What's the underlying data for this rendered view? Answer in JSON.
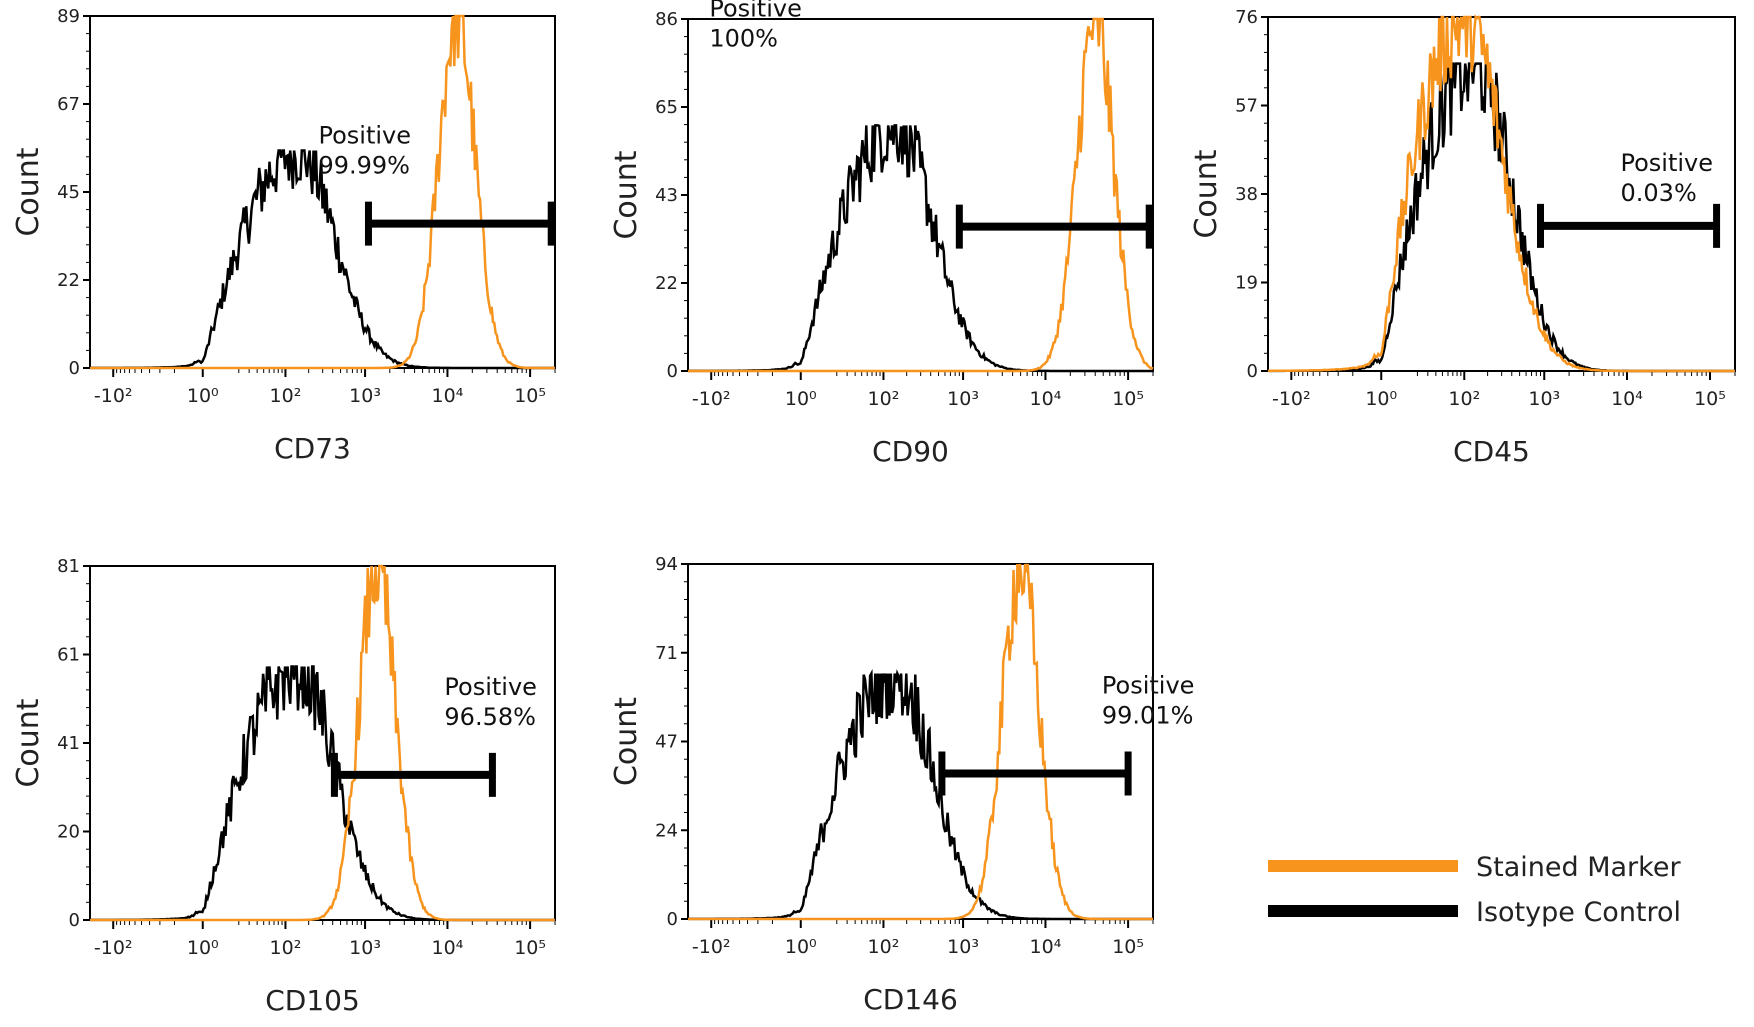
{
  "chart_data": [
    {
      "type": "area",
      "title": "CD73",
      "ylabel": "Count",
      "ylim": [
        0,
        89
      ],
      "yticks": [
        "0",
        "22",
        "45",
        "67",
        "89"
      ],
      "xscale": "log (biexponential)",
      "xticks": [
        "-10²",
        "10⁰",
        "10²",
        "10³",
        "10⁴",
        "10⁵"
      ],
      "gate": {
        "label": "Positive",
        "value": "99.99%",
        "from": 1100,
        "to": 180000
      },
      "series": [
        {
          "name": "Stained Marker",
          "color": "#F7941D",
          "peak_x": 13000,
          "peak_count": 89
        },
        {
          "name": "Isotype Control",
          "color": "#000000",
          "peak_x": 150,
          "peak_count": 55
        }
      ]
    },
    {
      "type": "area",
      "title": "CD90",
      "ylabel": "Count",
      "ylim": [
        0,
        86
      ],
      "yticks": [
        "0",
        "22",
        "43",
        "65",
        "86"
      ],
      "xscale": "log (biexponential)",
      "xticks": [
        "-10²",
        "10⁰",
        "10²",
        "10³",
        "10⁴",
        "10⁵"
      ],
      "gate": {
        "label": "Positive",
        "value": "100%",
        "from": 900,
        "to": 180000
      },
      "series": [
        {
          "name": "Stained Marker",
          "color": "#F7941D",
          "peak_x": 40000,
          "peak_count": 86
        },
        {
          "name": "Isotype Control",
          "color": "#000000",
          "peak_x": 150,
          "peak_count": 60
        }
      ]
    },
    {
      "type": "area",
      "title": "CD45",
      "ylabel": "Count",
      "ylim": [
        0,
        76
      ],
      "yticks": [
        "0",
        "19",
        "38",
        "57",
        "76"
      ],
      "xscale": "log (biexponential)",
      "xticks": [
        "-10²",
        "10⁰",
        "10²",
        "10³",
        "10⁴",
        "10⁵"
      ],
      "gate": {
        "label": "Positive",
        "value": "0.03%",
        "from": 900,
        "to": 120000
      },
      "series": [
        {
          "name": "Stained Marker",
          "color": "#F7941D",
          "peak_x": 110,
          "peak_count": 76
        },
        {
          "name": "Isotype Control",
          "color": "#000000",
          "peak_x": 140,
          "peak_count": 66
        }
      ]
    },
    {
      "type": "area",
      "title": "CD105",
      "ylabel": "Count",
      "ylim": [
        0,
        81
      ],
      "yticks": [
        "0",
        "20",
        "41",
        "61",
        "81"
      ],
      "xscale": "log (biexponential)",
      "xticks": [
        "-10²",
        "10⁰",
        "10²",
        "10³",
        "10⁴",
        "10⁵"
      ],
      "gate": {
        "label": "Positive",
        "value": "96.58%",
        "from": 420,
        "to": 35000
      },
      "series": [
        {
          "name": "Stained Marker",
          "color": "#F7941D",
          "peak_x": 1400,
          "peak_count": 81
        },
        {
          "name": "Isotype Control",
          "color": "#000000",
          "peak_x": 150,
          "peak_count": 58
        }
      ]
    },
    {
      "type": "area",
      "title": "CD146",
      "ylabel": "Count",
      "ylim": [
        0,
        94
      ],
      "yticks": [
        "0",
        "24",
        "47",
        "71",
        "94"
      ],
      "xscale": "log (biexponential)",
      "xticks": [
        "-10²",
        "10⁰",
        "10²",
        "10³",
        "10⁴",
        "10⁵"
      ],
      "gate": {
        "label": "Positive",
        "value": "99.01%",
        "from": 550,
        "to": 100000
      },
      "series": [
        {
          "name": "Stained Marker",
          "color": "#F7941D",
          "peak_x": 5000,
          "peak_count": 94
        },
        {
          "name": "Isotype Control",
          "color": "#000000",
          "peak_x": 150,
          "peak_count": 65
        }
      ]
    }
  ],
  "legend": {
    "placement": "bottom-right",
    "items": [
      {
        "label": "Stained Marker",
        "color": "#F7941D"
      },
      {
        "label": "Isotype Control",
        "color": "#000000"
      }
    ]
  }
}
